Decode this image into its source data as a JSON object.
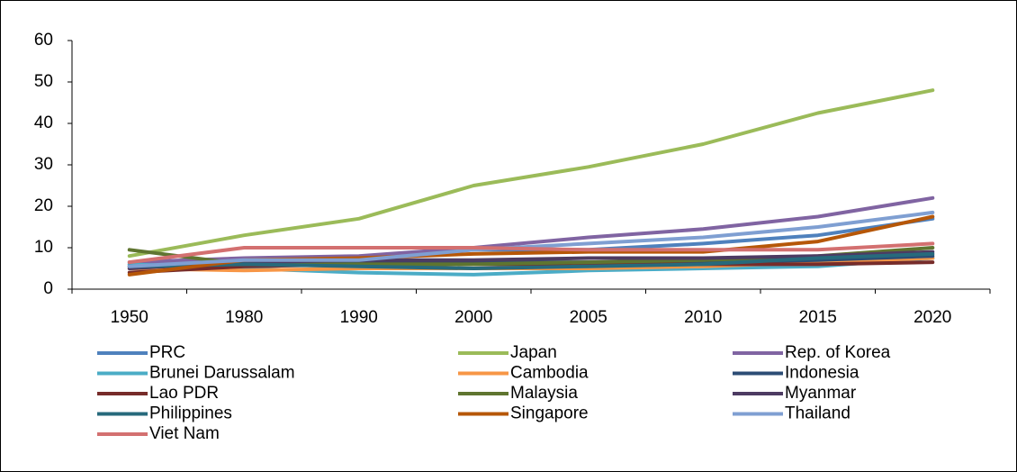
{
  "chart_data": {
    "type": "line",
    "title": "",
    "xlabel": "",
    "ylabel": "",
    "categories": [
      "1950",
      "1980",
      "1990",
      "2000",
      "2005",
      "2010",
      "2015",
      "2020"
    ],
    "yticks": [
      "0",
      "10",
      "20",
      "30",
      "40",
      "50",
      "60"
    ],
    "ylim": [
      0,
      60
    ],
    "grid": false,
    "legend_position": "bottom",
    "series": [
      {
        "name": "PRC",
        "color": "#4f81bd",
        "values": [
          6.0,
          7.0,
          7.5,
          9.5,
          9.5,
          11.0,
          13.0,
          17.0
        ]
      },
      {
        "name": "Japan",
        "color": "#9bbb59",
        "values": [
          8.0,
          13.0,
          17.0,
          25.0,
          29.5,
          35.0,
          42.5,
          48.0
        ]
      },
      {
        "name": "Rep. of Korea",
        "color": "#8064a2",
        "values": [
          6.5,
          7.5,
          8.0,
          10.0,
          12.5,
          14.5,
          17.5,
          22.0
        ]
      },
      {
        "name": "Brunei Darussalam",
        "color": "#4bacc6",
        "values": [
          6.0,
          5.0,
          4.0,
          3.5,
          4.5,
          5.0,
          5.5,
          7.5
        ]
      },
      {
        "name": "Cambodia",
        "color": "#f79646",
        "values": [
          5.0,
          4.5,
          5.0,
          5.0,
          5.0,
          5.5,
          6.5,
          7.5
        ]
      },
      {
        "name": "Indonesia",
        "color": "#2c4d75",
        "values": [
          5.5,
          6.0,
          6.5,
          6.5,
          6.5,
          6.5,
          7.0,
          8.0
        ]
      },
      {
        "name": "Lao PDR",
        "color": "#772c2a",
        "values": [
          4.0,
          5.5,
          6.0,
          6.0,
          6.0,
          6.0,
          6.0,
          6.5
        ]
      },
      {
        "name": "Malaysia",
        "color": "#5f7530",
        "values": [
          9.5,
          6.0,
          6.0,
          6.0,
          6.5,
          7.0,
          8.0,
          10.0
        ]
      },
      {
        "name": "Myanmar",
        "color": "#4d3b62",
        "values": [
          5.0,
          6.5,
          7.0,
          7.0,
          7.5,
          7.5,
          8.0,
          9.0
        ]
      },
      {
        "name": "Philippines",
        "color": "#276a7c",
        "values": [
          5.5,
          6.0,
          5.5,
          5.0,
          5.5,
          6.0,
          7.5,
          8.5
        ]
      },
      {
        "name": "Singapore",
        "color": "#b65708",
        "values": [
          3.5,
          7.0,
          7.5,
          8.5,
          9.0,
          9.0,
          11.5,
          17.5
        ]
      },
      {
        "name": "Thailand",
        "color": "#7f9fd2",
        "values": [
          5.5,
          7.0,
          7.0,
          9.5,
          11.0,
          12.5,
          15.0,
          18.5
        ]
      },
      {
        "name": "Viet Nam",
        "color": "#d37070",
        "values": [
          6.5,
          10.0,
          10.0,
          10.0,
          9.5,
          9.5,
          9.5,
          11.0
        ]
      }
    ]
  }
}
